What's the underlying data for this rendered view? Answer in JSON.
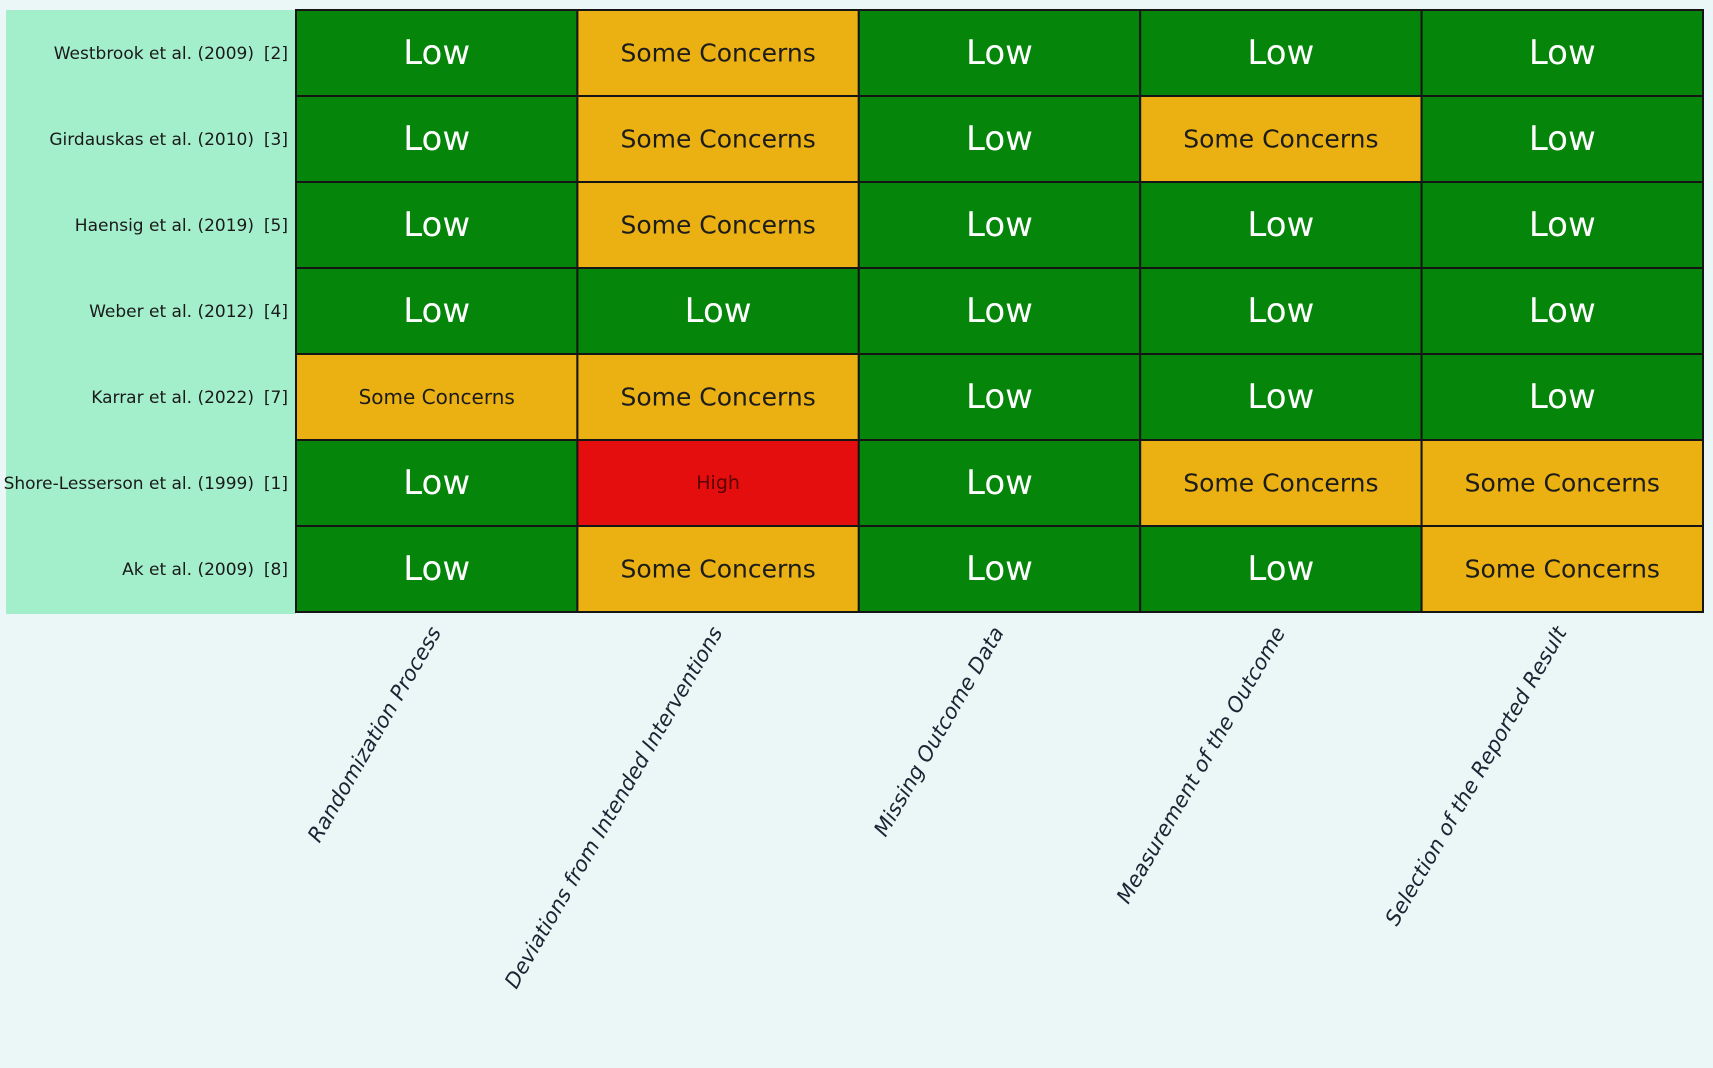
{
  "colors": {
    "Low": "#05860a",
    "Some Concerns": "#ebb112",
    "High": "#e50e0e",
    "label_panel": "#a4efcb",
    "background": "#ebf7f6",
    "grid_line": "#151515"
  },
  "chart_data": {
    "type": "heatmap",
    "title": "",
    "xlabel": "",
    "ylabel": "",
    "columns": [
      "Randomization Process",
      "Deviations from Intended Interventions",
      "Missing Outcome Data",
      "Measurement of the Outcome",
      "Selection of the Reported Result"
    ],
    "rows": [
      {
        "study": "Westbrook et al. (2009)",
        "ref": "[2]",
        "values": [
          "Low",
          "Some Concerns",
          "Low",
          "Low",
          "Low"
        ]
      },
      {
        "study": "Girdauskas et al. (2010)",
        "ref": "[3]",
        "values": [
          "Low",
          "Some Concerns",
          "Low",
          "Some Concerns",
          "Low"
        ]
      },
      {
        "study": "Haensig et al. (2019)",
        "ref": "[5]",
        "values": [
          "Low",
          "Some Concerns",
          "Low",
          "Low",
          "Low"
        ]
      },
      {
        "study": "Weber et al. (2012)",
        "ref": "[4]",
        "values": [
          "Low",
          "Low",
          "Low",
          "Low",
          "Low"
        ]
      },
      {
        "study": "Karrar et al. (2022)",
        "ref": "[7]",
        "values": [
          "Some Concerns",
          "Some Concerns",
          "Low",
          "Low",
          "Low"
        ]
      },
      {
        "study": "Shore-Lesserson et al. (1999)",
        "ref": "[1]",
        "values": [
          "Low",
          "High",
          "Low",
          "Some Concerns",
          "Some Concerns"
        ]
      },
      {
        "study": "Ak et al. (2009)",
        "ref": "[8]",
        "values": [
          "Low",
          "Some Concerns",
          "Low",
          "Low",
          "Some Concerns"
        ]
      }
    ]
  }
}
